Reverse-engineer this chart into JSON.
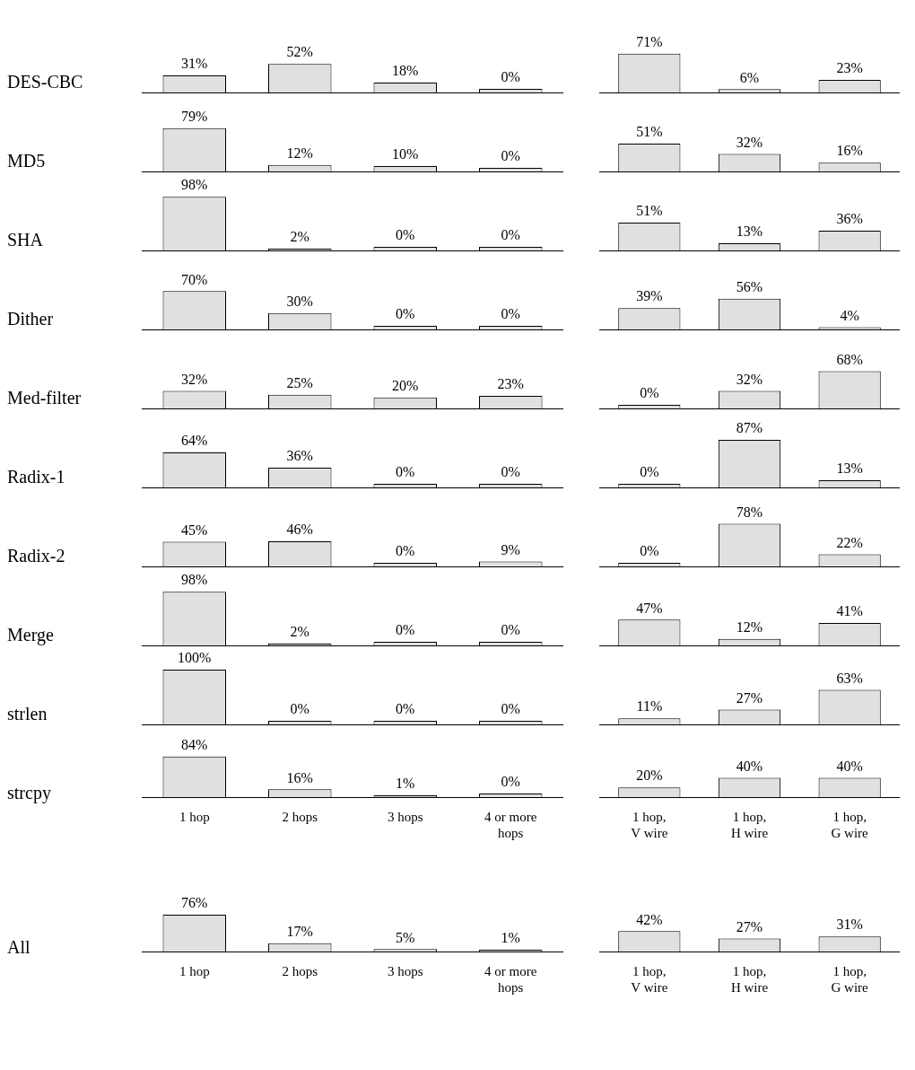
{
  "chart_data": [
    {
      "type": "bar",
      "ylabel": "DES-CBC",
      "categories": [
        null,
        null,
        null,
        null
      ],
      "values": [
        31,
        52,
        18,
        0
      ],
      "value_labels": [
        "31%",
        "52%",
        "18%",
        "0%"
      ],
      "color": "#e0e0e0",
      "tick_labels": false
    },
    {
      "type": "bar",
      "categories": [
        null,
        null,
        null
      ],
      "values": [
        71,
        6,
        23
      ],
      "value_labels": [
        "71%",
        "6%",
        "23%"
      ],
      "color": "#e0e0e0",
      "tick_labels": false
    },
    {
      "type": "bar",
      "ylabel": "MD5",
      "categories": [
        null,
        null,
        null,
        null
      ],
      "values": [
        79,
        12,
        10,
        0
      ],
      "value_labels": [
        "79%",
        "12%",
        "10%",
        "0%"
      ],
      "color": "#e0e0e0",
      "tick_labels": false
    },
    {
      "type": "bar",
      "categories": [
        null,
        null,
        null
      ],
      "values": [
        51,
        32,
        16
      ],
      "value_labels": [
        "51%",
        "32%",
        "16%"
      ],
      "color": "#e0e0e0",
      "tick_labels": false
    },
    {
      "type": "bar",
      "ylabel": "SHA",
      "categories": [
        null,
        null,
        null,
        null
      ],
      "values": [
        98,
        2,
        0,
        0
      ],
      "value_labels": [
        "98%",
        "2%",
        "0%",
        "0%"
      ],
      "color": "#e0e0e0",
      "tick_labels": false
    },
    {
      "type": "bar",
      "categories": [
        null,
        null,
        null
      ],
      "values": [
        51,
        13,
        36
      ],
      "value_labels": [
        "51%",
        "13%",
        "36%"
      ],
      "color": "#e0e0e0",
      "tick_labels": false
    },
    {
      "type": "bar",
      "ylabel": "Dither",
      "categories": [
        null,
        null,
        null,
        null
      ],
      "values": [
        70,
        30,
        0,
        0
      ],
      "value_labels": [
        "70%",
        "30%",
        "0%",
        "0%"
      ],
      "color": "#e0e0e0",
      "tick_labels": false
    },
    {
      "type": "bar",
      "categories": [
        null,
        null,
        null
      ],
      "values": [
        39,
        56,
        4
      ],
      "value_labels": [
        "39%",
        "56%",
        "4%"
      ],
      "color": "#e0e0e0",
      "tick_labels": false
    },
    {
      "type": "bar",
      "ylabel": "Med-filter",
      "categories": [
        null,
        null,
        null,
        null
      ],
      "values": [
        32,
        25,
        20,
        23
      ],
      "value_labels": [
        "32%",
        "25%",
        "20%",
        "23%"
      ],
      "color": "#e0e0e0",
      "tick_labels": false
    },
    {
      "type": "bar",
      "categories": [
        null,
        null,
        null
      ],
      "values": [
        0,
        32,
        68
      ],
      "value_labels": [
        "0%",
        "32%",
        "68%"
      ],
      "color": "#e0e0e0",
      "tick_labels": false
    },
    {
      "type": "bar",
      "ylabel": "Radix-1",
      "categories": [
        null,
        null,
        null,
        null
      ],
      "values": [
        64,
        36,
        0,
        0
      ],
      "value_labels": [
        "64%",
        "36%",
        "0%",
        "0%"
      ],
      "color": "#e0e0e0",
      "tick_labels": false
    },
    {
      "type": "bar",
      "categories": [
        null,
        null,
        null
      ],
      "values": [
        0,
        87,
        13
      ],
      "value_labels": [
        "0%",
        "87%",
        "13%"
      ],
      "color": "#e0e0e0",
      "tick_labels": false
    },
    {
      "type": "bar",
      "ylabel": "Radix-2",
      "categories": [
        null,
        null,
        null,
        null
      ],
      "values": [
        45,
        46,
        0,
        9
      ],
      "value_labels": [
        "45%",
        "46%",
        "0%",
        "9%"
      ],
      "color": "#e0e0e0",
      "tick_labels": false
    },
    {
      "type": "bar",
      "categories": [
        null,
        null,
        null
      ],
      "values": [
        0,
        78,
        22
      ],
      "value_labels": [
        "0%",
        "78%",
        "22%"
      ],
      "color": "#e0e0e0",
      "tick_labels": false
    },
    {
      "type": "bar",
      "ylabel": "Merge",
      "categories": [
        null,
        null,
        null,
        null
      ],
      "values": [
        98,
        2,
        0,
        0
      ],
      "value_labels": [
        "98%",
        "2%",
        "0%",
        "0%"
      ],
      "color": "#e0e0e0",
      "tick_labels": false
    },
    {
      "type": "bar",
      "categories": [
        null,
        null,
        null
      ],
      "values": [
        47,
        12,
        41
      ],
      "value_labels": [
        "47%",
        "12%",
        "41%"
      ],
      "color": "#e0e0e0",
      "tick_labels": false
    },
    {
      "type": "bar",
      "ylabel": "strlen",
      "categories": [
        null,
        null,
        null,
        null
      ],
      "values": [
        100,
        0,
        0,
        0
      ],
      "value_labels": [
        "100%",
        "0%",
        "0%",
        "0%"
      ],
      "color": "#e0e0e0",
      "tick_labels": false
    },
    {
      "type": "bar",
      "categories": [
        null,
        null,
        null
      ],
      "values": [
        11,
        27,
        63
      ],
      "value_labels": [
        "11%",
        "27%",
        "63%"
      ],
      "color": "#e0e0e0",
      "tick_labels": false
    },
    {
      "type": "bar",
      "ylabel": "strcpy",
      "categories": [
        "1 hop",
        "2 hops",
        "3 hops",
        "4 or more\nhops"
      ],
      "values": [
        84,
        16,
        1,
        0
      ],
      "value_labels": [
        "84%",
        "16%",
        "1%",
        "0%"
      ],
      "color": "#e0e0e0",
      "tick_labels": "x"
    },
    {
      "type": "bar",
      "categories": [
        "1 hop,\nV wire",
        "1 hop,\nH wire",
        "1 hop,\nG wire"
      ],
      "values": [
        20,
        40,
        40
      ],
      "value_labels": [
        "20%",
        "40%",
        "40%"
      ],
      "color": "#e0e0e0",
      "tick_labels": "x"
    },
    {
      "type": "bar",
      "ylabel": "All",
      "categories": [
        "1 hop",
        "2 hops",
        "3 hops",
        "4 or more\nhops"
      ],
      "values": [
        76,
        17,
        5,
        1
      ],
      "value_labels": [
        "76%",
        "17%",
        "5%",
        "1%"
      ],
      "color": "#e0e0e0",
      "tick_labels": "x"
    },
    {
      "type": "bar",
      "categories": [
        "1 hop,\nV wire",
        "1 hop,\nH wire",
        "1 hop,\nG wire"
      ],
      "values": [
        42,
        27,
        31
      ],
      "value_labels": [
        "42%",
        "27%",
        "31%"
      ],
      "color": "#e0e0e0",
      "tick_labels": "x"
    }
  ]
}
